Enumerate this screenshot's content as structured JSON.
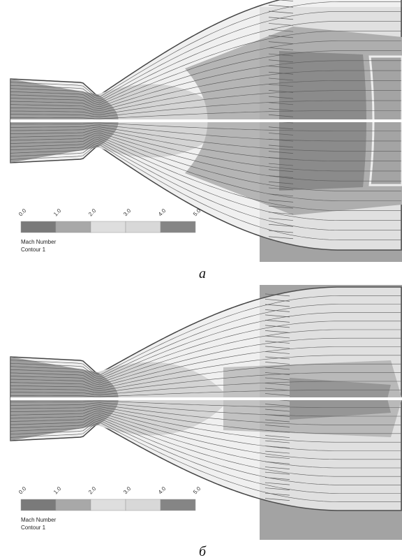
{
  "panels": [
    {
      "legend": {
        "ticks": [
          "0.0",
          "1.0",
          "2.0",
          "3.0",
          "4.0",
          "5.0"
        ],
        "title": "Mach Number",
        "subtitle": "Contour 1"
      },
      "caption": "а"
    },
    {
      "legend": {
        "ticks": [
          "0.0",
          "1.0",
          "2.0",
          "3.0",
          "4.0",
          "5.0"
        ],
        "title": "Mach Number",
        "subtitle": "Contour 1"
      },
      "caption": "б"
    }
  ]
}
